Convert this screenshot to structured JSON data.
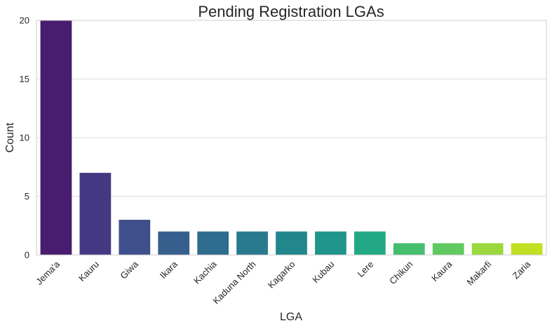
{
  "chart_data": {
    "type": "bar",
    "title": "Pending Registration LGAs",
    "xlabel": "LGA",
    "ylabel": "Count",
    "categories": [
      "Jema'a",
      "Kauru",
      "Giwa",
      "Ikara",
      "Kachia",
      "Kaduna North",
      "Kagarko",
      "Kubau",
      "Lere",
      "Chikun",
      "Kaura",
      "Makarfi",
      "Zaria"
    ],
    "values": [
      20,
      7,
      3,
      2,
      2,
      2,
      2,
      2,
      2,
      1,
      1,
      1,
      1
    ],
    "ylim": [
      0,
      20
    ],
    "yticks": [
      0,
      5,
      10,
      15,
      20
    ],
    "grid": "horizontal",
    "colors": [
      "#481c6e",
      "#453882",
      "#3f4f8b",
      "#365f8d",
      "#2f6d8e",
      "#297a8e",
      "#22878d",
      "#1f958b",
      "#22a884",
      "#44bf70",
      "#60c960",
      "#9bd83d",
      "#c2df23"
    ],
    "gridline_color": "#dddddd",
    "frame_color": "#cccccc"
  }
}
